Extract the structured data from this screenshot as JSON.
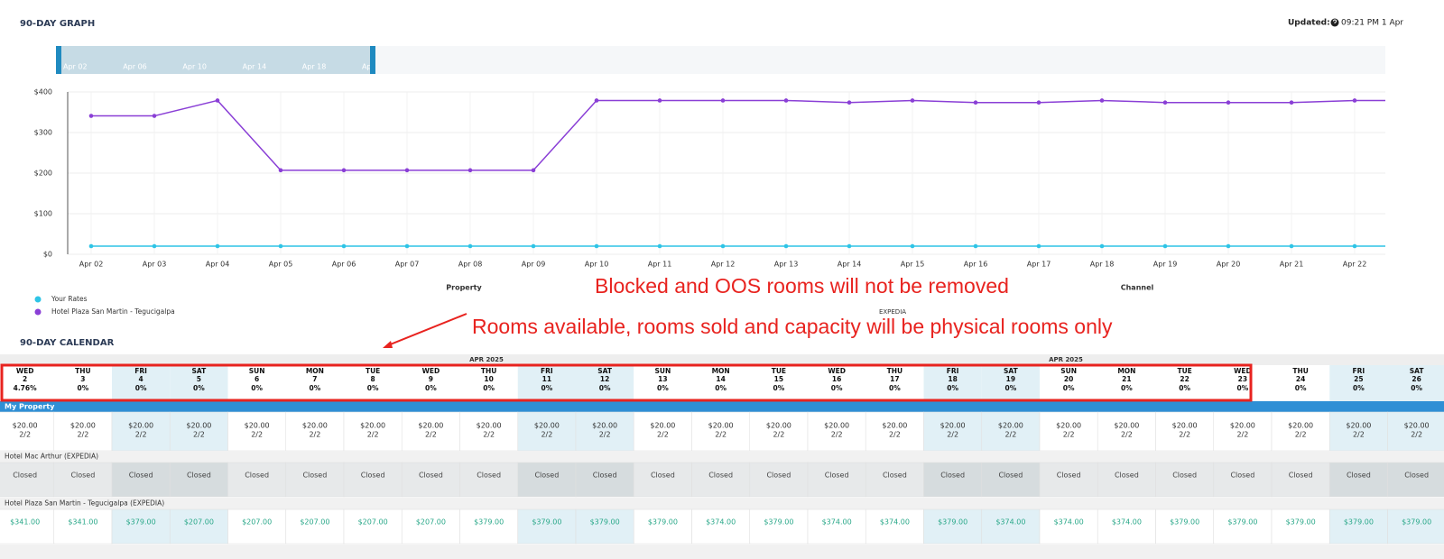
{
  "header": {
    "title": "90-DAY GRAPH",
    "updated_label": "Updated:",
    "updated_value": "09:21 PM 1 Apr"
  },
  "navigator": {
    "labels": [
      "Apr 02",
      "Apr 06",
      "Apr 10",
      "Apr 14",
      "Apr 18",
      "Apr"
    ]
  },
  "chart_data": {
    "type": "line",
    "categories": [
      "Apr 02",
      "Apr 03",
      "Apr 04",
      "Apr 05",
      "Apr 06",
      "Apr 07",
      "Apr 08",
      "Apr 09",
      "Apr 10",
      "Apr 11",
      "Apr 12",
      "Apr 13",
      "Apr 14",
      "Apr 15",
      "Apr 16",
      "Apr 17",
      "Apr 18",
      "Apr 19",
      "Apr 20",
      "Apr 21",
      "Apr 22",
      null
    ],
    "series": [
      {
        "name": "Your Rates",
        "color": "#2ec4e6",
        "values": [
          20,
          20,
          20,
          20,
          20,
          20,
          20,
          20,
          20,
          20,
          20,
          20,
          20,
          20,
          20,
          20,
          20,
          20,
          20,
          20,
          20,
          20
        ]
      },
      {
        "name": "Hotel Plaza San Martin - Tegucigalpa",
        "color": "#8a3fd6",
        "values": [
          341,
          341,
          379,
          207,
          207,
          207,
          207,
          207,
          379,
          379,
          379,
          379,
          374,
          379,
          374,
          374,
          379,
          374,
          374,
          374,
          379,
          379
        ]
      }
    ],
    "ylim": [
      0,
      400
    ],
    "yticks": [
      {
        "value": 0,
        "label": "$0"
      },
      {
        "value": 100,
        "label": "$100"
      },
      {
        "value": 200,
        "label": "$200"
      },
      {
        "value": 300,
        "label": "$300"
      },
      {
        "value": 400,
        "label": "$400"
      }
    ],
    "grid": true,
    "footer_labels": {
      "property": "Property",
      "channel": "Channel",
      "channel_name": "EXPEDIA"
    }
  },
  "annotations": [
    "Blocked and OOS rooms will not be removed",
    "Rooms available, rooms sold and capacity will be physical rooms only"
  ],
  "calendar": {
    "title": "90-DAY CALENDAR",
    "months": [
      "APR 2025",
      "APR 2025"
    ],
    "days": [
      {
        "dow": "WED",
        "day": "2",
        "occupancy": "4.76%"
      },
      {
        "dow": "THU",
        "day": "3",
        "occupancy": "0%"
      },
      {
        "dow": "FRI",
        "day": "4",
        "occupancy": "0%"
      },
      {
        "dow": "SAT",
        "day": "5",
        "occupancy": "0%"
      },
      {
        "dow": "SUN",
        "day": "6",
        "occupancy": "0%"
      },
      {
        "dow": "MON",
        "day": "7",
        "occupancy": "0%"
      },
      {
        "dow": "TUE",
        "day": "8",
        "occupancy": "0%"
      },
      {
        "dow": "WED",
        "day": "9",
        "occupancy": "0%"
      },
      {
        "dow": "THU",
        "day": "10",
        "occupancy": "0%"
      },
      {
        "dow": "FRI",
        "day": "11",
        "occupancy": "0%"
      },
      {
        "dow": "SAT",
        "day": "12",
        "occupancy": "0%"
      },
      {
        "dow": "SUN",
        "day": "13",
        "occupancy": "0%"
      },
      {
        "dow": "MON",
        "day": "14",
        "occupancy": "0%"
      },
      {
        "dow": "TUE",
        "day": "15",
        "occupancy": "0%"
      },
      {
        "dow": "WED",
        "day": "16",
        "occupancy": "0%"
      },
      {
        "dow": "THU",
        "day": "17",
        "occupancy": "0%"
      },
      {
        "dow": "FRI",
        "day": "18",
        "occupancy": "0%"
      },
      {
        "dow": "SAT",
        "day": "19",
        "occupancy": "0%"
      },
      {
        "dow": "SUN",
        "day": "20",
        "occupancy": "0%"
      },
      {
        "dow": "MON",
        "day": "21",
        "occupancy": "0%"
      },
      {
        "dow": "TUE",
        "day": "22",
        "occupancy": "0%"
      },
      {
        "dow": "WED",
        "day": "23",
        "occupancy": "0%"
      },
      {
        "dow": "THU",
        "day": "24",
        "occupancy": "0%"
      },
      {
        "dow": "FRI",
        "day": "25",
        "occupancy": "0%"
      },
      {
        "dow": "SAT",
        "day": "26",
        "occupancy": "0%"
      }
    ],
    "my_property": {
      "label": "My Property",
      "cells": [
        {
          "rate": "$20.00",
          "rooms": "2/2"
        },
        {
          "rate": "$20.00",
          "rooms": "2/2"
        },
        {
          "rate": "$20.00",
          "rooms": "2/2"
        },
        {
          "rate": "$20.00",
          "rooms": "2/2"
        },
        {
          "rate": "$20.00",
          "rooms": "2/2"
        },
        {
          "rate": "$20.00",
          "rooms": "2/2"
        },
        {
          "rate": "$20.00",
          "rooms": "2/2"
        },
        {
          "rate": "$20.00",
          "rooms": "2/2"
        },
        {
          "rate": "$20.00",
          "rooms": "2/2"
        },
        {
          "rate": "$20.00",
          "rooms": "2/2"
        },
        {
          "rate": "$20.00",
          "rooms": "2/2"
        },
        {
          "rate": "$20.00",
          "rooms": "2/2"
        },
        {
          "rate": "$20.00",
          "rooms": "2/2"
        },
        {
          "rate": "$20.00",
          "rooms": "2/2"
        },
        {
          "rate": "$20.00",
          "rooms": "2/2"
        },
        {
          "rate": "$20.00",
          "rooms": "2/2"
        },
        {
          "rate": "$20.00",
          "rooms": "2/2"
        },
        {
          "rate": "$20.00",
          "rooms": "2/2"
        },
        {
          "rate": "$20.00",
          "rooms": "2/2"
        },
        {
          "rate": "$20.00",
          "rooms": "2/2"
        },
        {
          "rate": "$20.00",
          "rooms": "2/2"
        },
        {
          "rate": "$20.00",
          "rooms": "2/2"
        },
        {
          "rate": "$20.00",
          "rooms": "2/2"
        },
        {
          "rate": "$20.00",
          "rooms": "2/2"
        },
        {
          "rate": "$20.00",
          "rooms": "2/2"
        }
      ]
    },
    "competitors": [
      {
        "label": "Hotel Mac Arthur (EXPEDIA)",
        "cells": [
          "Closed",
          "Closed",
          "Closed",
          "Closed",
          "Closed",
          "Closed",
          "Closed",
          "Closed",
          "Closed",
          "Closed",
          "Closed",
          "Closed",
          "Closed",
          "Closed",
          "Closed",
          "Closed",
          "Closed",
          "Closed",
          "Closed",
          "Closed",
          "Closed",
          "Closed",
          "Closed",
          "Closed",
          "Closed"
        ]
      },
      {
        "label": "Hotel Plaza San Martin - Tegucigalpa (EXPEDIA)",
        "cells": [
          "$341.00",
          "$341.00",
          "$379.00",
          "$207.00",
          "$207.00",
          "$207.00",
          "$207.00",
          "$207.00",
          "$379.00",
          "$379.00",
          "$379.00",
          "$379.00",
          "$374.00",
          "$379.00",
          "$374.00",
          "$374.00",
          "$379.00",
          "$374.00",
          "$374.00",
          "$374.00",
          "$379.00",
          "$379.00",
          "$379.00",
          "$379.00",
          "$379.00"
        ]
      }
    ]
  }
}
